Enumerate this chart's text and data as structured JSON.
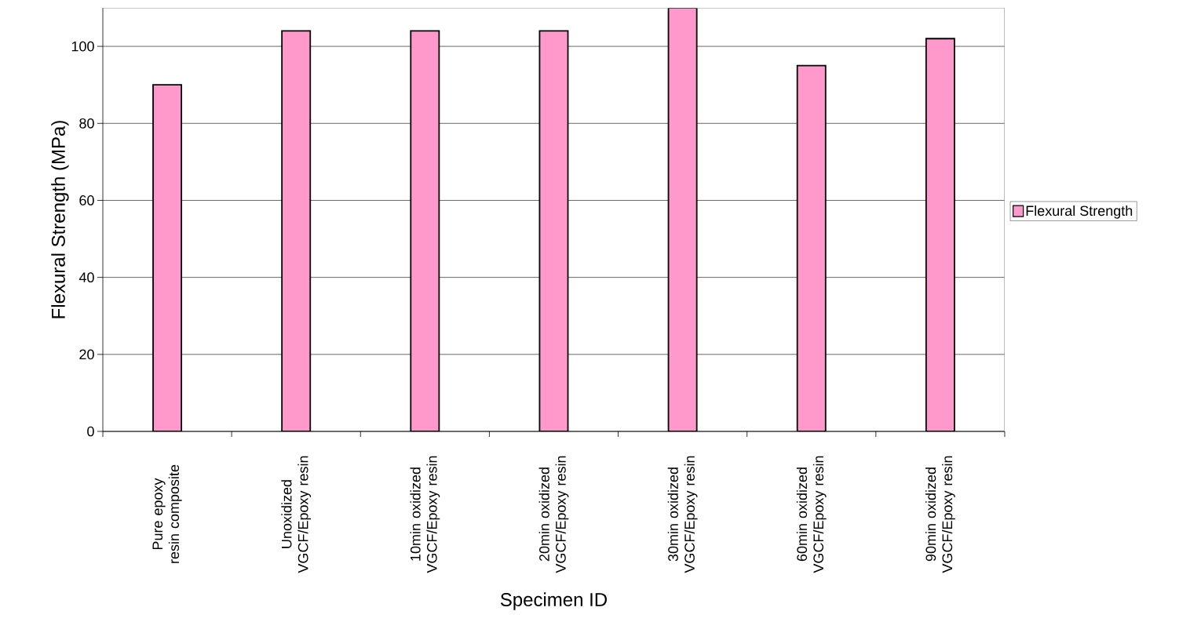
{
  "chart_data": {
    "type": "bar",
    "xlabel": "Specimen ID",
    "ylabel": "Flexural Strength (MPa)",
    "categories": [
      "Pure epoxy resin composite",
      "Unoxidized VGCF/Epoxy resin",
      "10min oxidized VGCF/Epoxy resin",
      "20min oxidized VGCF/Epoxy resin",
      "30min oxidized VGCF/Epoxy resin",
      "60min oxidized VGCF/Epoxy resin",
      "90min oxidized VGCF/Epoxy resin"
    ],
    "series": [
      {
        "name": "Flexural Strength",
        "color": "#ff99cc",
        "values": [
          90,
          104,
          104,
          104,
          110,
          95,
          102
        ]
      }
    ],
    "ylim": [
      0,
      110
    ],
    "yticks": [
      0,
      20,
      40,
      60,
      80,
      100
    ],
    "grid": "y",
    "legend": "right"
  }
}
